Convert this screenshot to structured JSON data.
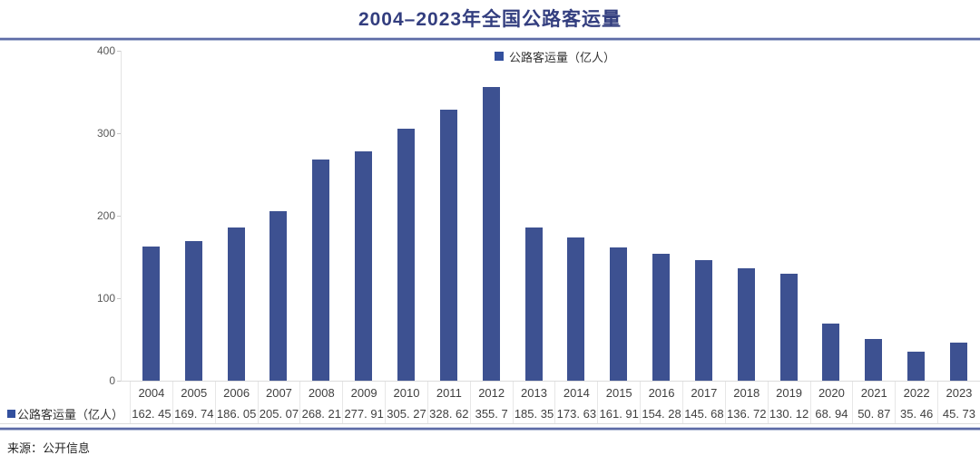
{
  "page": {
    "title": "2004–2023年全国公路客运量",
    "source": "来源：公开信息"
  },
  "legend": {
    "label": "公路客运量（亿人）",
    "marker_color": "#33509E"
  },
  "chart_data": {
    "type": "bar",
    "title": "2004–2023年全国公路客运量",
    "categories": [
      "2004",
      "2005",
      "2006",
      "2007",
      "2008",
      "2009",
      "2010",
      "2011",
      "2012",
      "2013",
      "2014",
      "2015",
      "2016",
      "2017",
      "2018",
      "2019",
      "2020",
      "2021",
      "2022",
      "2023"
    ],
    "series": [
      {
        "name": "公路客运量（亿人）",
        "values": [
          162.45,
          169.74,
          186.05,
          205.07,
          268.21,
          277.91,
          305.27,
          328.62,
          355.7,
          185.35,
          173.63,
          161.91,
          154.28,
          145.68,
          136.72,
          130.12,
          68.94,
          50.87,
          35.46,
          45.73
        ]
      }
    ],
    "xlabel": "",
    "ylabel": "",
    "ylim": [
      0,
      400
    ],
    "y_ticks": [
      0,
      100,
      200,
      300,
      400
    ],
    "grid": false,
    "legend_position": "top-center",
    "bar_color": "#3D5191"
  },
  "table": {
    "row_label": "公路客运量（亿人）",
    "years": [
      "2004",
      "2005",
      "2006",
      "2007",
      "2008",
      "2009",
      "2010",
      "2011",
      "2012",
      "2013",
      "2014",
      "2015",
      "2016",
      "2017",
      "2018",
      "2019",
      "2020",
      "2021",
      "2022",
      "2023"
    ],
    "values_display": [
      "162. 45",
      "169. 74",
      "186. 05",
      "205. 07",
      "268. 21",
      "277. 91",
      "305. 27",
      "328. 62",
      "355. 7",
      "185. 35",
      "173. 63",
      "161. 91",
      "154. 28",
      "145. 68",
      "136. 72",
      "130. 12",
      "68. 94",
      "50. 87",
      "35. 46",
      "45. 73"
    ]
  },
  "colors": {
    "title": "#333E7F",
    "bar": "#3D5191",
    "divider": "#5D6BA6",
    "axis_text": "#595959",
    "table_text": "#3F3F3F"
  }
}
